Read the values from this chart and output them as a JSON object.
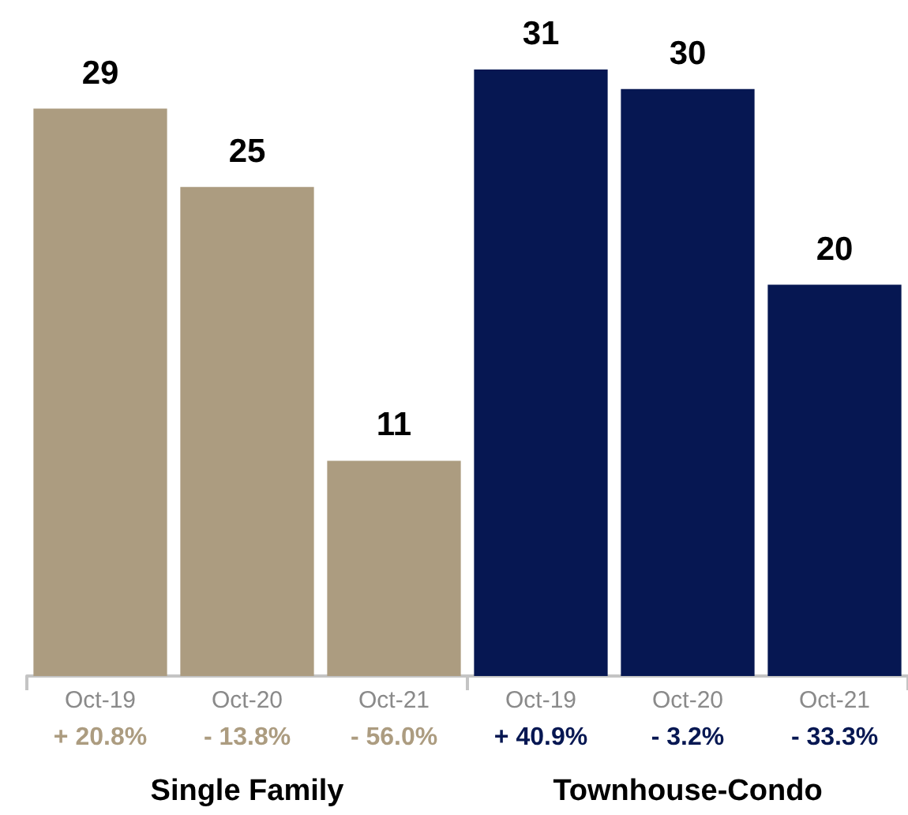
{
  "chart_data": {
    "type": "bar",
    "categories": [
      "Oct-19",
      "Oct-20",
      "Oct-21",
      "Oct-19",
      "Oct-20",
      "Oct-21"
    ],
    "values": [
      29,
      25,
      11,
      31,
      30,
      20
    ],
    "colors": [
      "#ac9c80",
      "#ac9c80",
      "#ac9c80",
      "#061752",
      "#061752",
      "#061752"
    ],
    "annotations": [
      "+ 20.8%",
      "- 13.8%",
      "- 56.0%",
      "+ 40.9%",
      "- 3.2%",
      "- 33.3%",
      "Single Family",
      "Townhouse-Condo"
    ],
    "data_labels": true
  }
}
